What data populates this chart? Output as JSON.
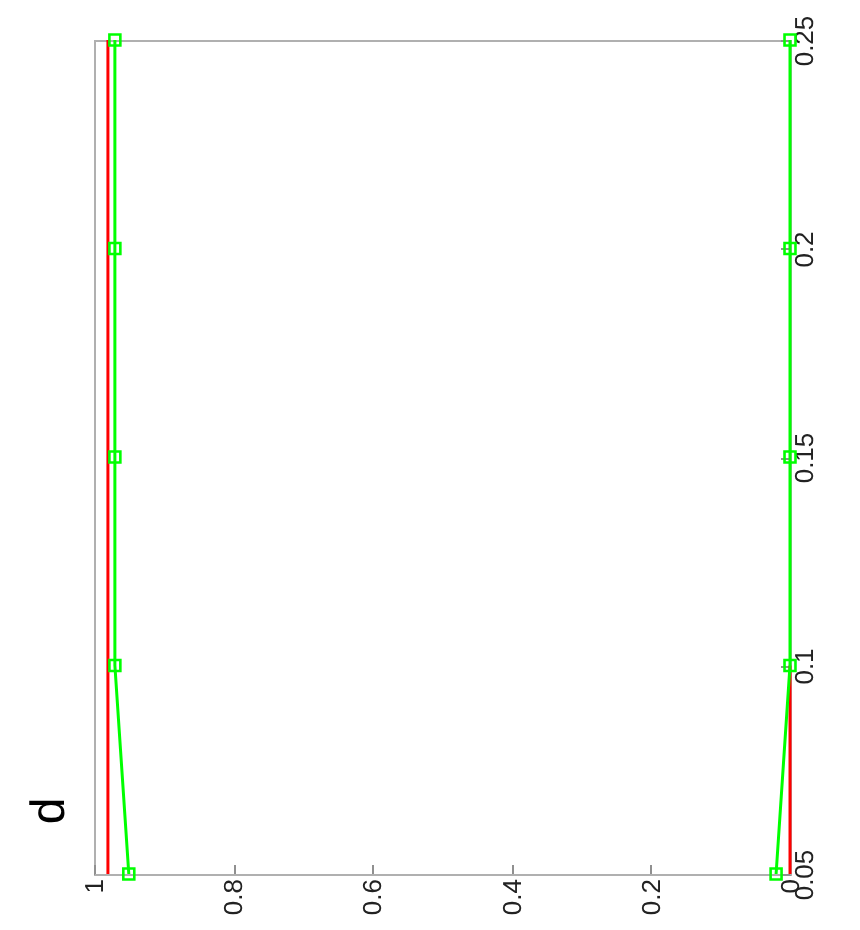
{
  "chart_data": {
    "type": "line",
    "annotations": [
      "d"
    ],
    "series": [
      {
        "color": "#ff0000",
        "marker": "none",
        "x": [
          0.98,
          0.98,
          0.98,
          0.98,
          0.98
        ],
        "values": [
          0.05,
          0.1,
          0.15,
          0.2,
          0.25
        ]
      },
      {
        "color": "#ff0000",
        "marker": "none",
        "x": [
          0,
          0,
          null,
          null,
          null
        ],
        "values": [
          0.05,
          0.1,
          null,
          null,
          null
        ]
      },
      {
        "color": "#00ff00",
        "marker": "square",
        "x": [
          0.95,
          0.97,
          0.97,
          0.97,
          0.97
        ],
        "values": [
          0.05,
          0.1,
          0.15,
          0.2,
          0.25
        ]
      },
      {
        "color": "#00ff00",
        "marker": "square",
        "x": [
          0.02,
          0,
          0,
          0,
          0
        ],
        "values": [
          0.05,
          0.1,
          0.15,
          0.2,
          0.25
        ]
      }
    ],
    "xlim": [
      1,
      0
    ],
    "xticks": [
      1,
      0.8,
      0.6,
      0.4,
      0.2,
      0
    ],
    "ylim": [
      0.05,
      0.25
    ],
    "yticks": [
      0.05,
      0.1,
      0.15,
      0.2,
      0.25
    ],
    "grid": false
  }
}
